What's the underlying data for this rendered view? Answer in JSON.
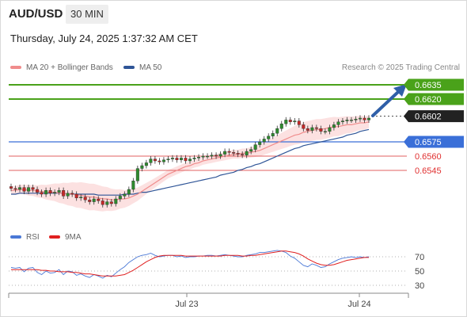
{
  "header": {
    "symbol": "AUD/USD",
    "timeframe": "30 MIN",
    "datetime": "Thursday, July 24, 2025 1:37:32 AM CET"
  },
  "legend": {
    "ma_bb_label": "MA 20 + Bollinger Bands",
    "ma50_label": "MA 50",
    "ma_bb_color": "#f08c8c",
    "ma50_color": "#2f5597",
    "research": "Research © 2025 Trading Central"
  },
  "rsi_legend": {
    "rsi_label": "RSI",
    "ma_label": "9MA",
    "rsi_color": "#4a78d6",
    "ma_color": "#e02020"
  },
  "colors": {
    "up": "#2e8b2e",
    "down": "#c62828",
    "resistance": "#4aa21a",
    "support_blue": "#3a6fd8",
    "support_red": "#e06060",
    "pivot": "#222222",
    "arrow": "#2f5fa8"
  },
  "chart_data": {
    "type": "candlestick",
    "x_ticks": [
      "Jul 23",
      "Jul 24"
    ],
    "levels": [
      {
        "value": 0.6635,
        "label": "0.6635",
        "kind": "resistance"
      },
      {
        "value": 0.662,
        "label": "0.6620",
        "kind": "resistance"
      },
      {
        "value": 0.6602,
        "label": "0.6602",
        "kind": "pivot"
      },
      {
        "value": 0.6575,
        "label": "0.6575",
        "kind": "support_blue"
      },
      {
        "value": 0.656,
        "label": "0.6560",
        "kind": "support_red"
      },
      {
        "value": 0.6545,
        "label": "0.6545",
        "kind": "support_red"
      }
    ],
    "close": [
      0.6526,
      0.6525,
      0.6527,
      0.6523,
      0.6527,
      0.6525,
      0.6522,
      0.652,
      0.6524,
      0.6521,
      0.6522,
      0.6524,
      0.6518,
      0.6521,
      0.652,
      0.6516,
      0.6517,
      0.6514,
      0.6512,
      0.6515,
      0.6513,
      0.6509,
      0.6512,
      0.651,
      0.6515,
      0.6518,
      0.652,
      0.6525,
      0.6534,
      0.6547,
      0.655,
      0.6553,
      0.6557,
      0.6555,
      0.6554,
      0.6556,
      0.6557,
      0.6558,
      0.6556,
      0.6558,
      0.6555,
      0.6557,
      0.6558,
      0.6559,
      0.656,
      0.656,
      0.6561,
      0.656,
      0.6562,
      0.6565,
      0.6564,
      0.6563,
      0.6562,
      0.6561,
      0.6565,
      0.6567,
      0.6572,
      0.6575,
      0.6578,
      0.6581,
      0.6584,
      0.6589,
      0.6594,
      0.6598,
      0.6596,
      0.6597,
      0.6593,
      0.6589,
      0.6587,
      0.659,
      0.6589,
      0.6586,
      0.6586,
      0.659,
      0.6593,
      0.6596,
      0.6597,
      0.6598,
      0.6598,
      0.6599,
      0.66,
      0.6598,
      0.66
    ],
    "ma20": [
      0.6524,
      0.6524,
      0.6525,
      0.6525,
      0.6524,
      0.6524,
      0.6523,
      0.6523,
      0.6522,
      0.6522,
      0.6522,
      0.6521,
      0.6521,
      0.652,
      0.652,
      0.6519,
      0.6519,
      0.6518,
      0.6517,
      0.6517,
      0.6516,
      0.6515,
      0.6515,
      0.6514,
      0.6514,
      0.6515,
      0.6515,
      0.6516,
      0.6518,
      0.652,
      0.6523,
      0.6526,
      0.6529,
      0.6532,
      0.6535,
      0.6538,
      0.6541,
      0.6543,
      0.6545,
      0.6547,
      0.6549,
      0.655,
      0.6552,
      0.6553,
      0.6555,
      0.6556,
      0.6557,
      0.6558,
      0.6559,
      0.656,
      0.6561,
      0.6562,
      0.6562,
      0.6563,
      0.6563,
      0.6564,
      0.6565,
      0.6566,
      0.6568,
      0.657,
      0.6572,
      0.6574,
      0.6576,
      0.6578,
      0.658,
      0.6582,
      0.6583,
      0.6585,
      0.6586,
      0.6587,
      0.6588,
      0.6588,
      0.6589,
      0.659,
      0.6591,
      0.6591,
      0.6592,
      0.6593,
      0.6593,
      0.6594,
      0.6595,
      0.6595,
      0.6596
    ],
    "ma50": [
      0.652,
      0.652,
      0.6521,
      0.6521,
      0.6521,
      0.6521,
      0.6521,
      0.6521,
      0.6521,
      0.6521,
      0.6521,
      0.6521,
      0.6521,
      0.652,
      0.652,
      0.652,
      0.652,
      0.652,
      0.652,
      0.652,
      0.6519,
      0.6519,
      0.6519,
      0.6519,
      0.6519,
      0.6519,
      0.652,
      0.652,
      0.652,
      0.6521,
      0.6522,
      0.6522,
      0.6523,
      0.6524,
      0.6525,
      0.6526,
      0.6527,
      0.6528,
      0.6529,
      0.653,
      0.6531,
      0.6532,
      0.6533,
      0.6534,
      0.6535,
      0.6536,
      0.6537,
      0.6538,
      0.654,
      0.6541,
      0.6542,
      0.6543,
      0.6545,
      0.6546,
      0.6548,
      0.6549,
      0.6551,
      0.6552,
      0.6554,
      0.6556,
      0.6558,
      0.656,
      0.6562,
      0.6564,
      0.6566,
      0.6568,
      0.6569,
      0.6571,
      0.6572,
      0.6573,
      0.6574,
      0.6575,
      0.6576,
      0.6577,
      0.6578,
      0.6579,
      0.658,
      0.6582,
      0.6583,
      0.6584,
      0.6586,
      0.6587,
      0.6588
    ],
    "rsi_axis": [
      70,
      50,
      30
    ],
    "rsi": [
      55,
      54,
      55,
      49,
      54,
      55,
      48,
      45,
      50,
      47,
      48,
      52,
      45,
      50,
      49,
      44,
      46,
      43,
      41,
      45,
      43,
      40,
      44,
      42,
      47,
      52,
      56,
      62,
      66,
      70,
      72,
      73,
      75,
      72,
      70,
      71,
      72,
      72,
      70,
      71,
      69,
      70,
      70,
      71,
      71,
      72,
      72,
      71,
      72,
      73,
      72,
      71,
      70,
      70,
      72,
      73,
      74,
      76,
      76,
      77,
      78,
      79,
      78,
      76,
      71,
      68,
      63,
      58,
      56,
      60,
      58,
      55,
      56,
      60,
      63,
      66,
      68,
      69,
      70,
      69,
      70,
      69,
      70
    ],
    "rsi_ma": [
      52,
      52,
      52,
      52,
      52,
      52,
      52,
      51,
      51,
      50,
      50,
      49,
      49,
      49,
      48,
      48,
      47,
      46,
      46,
      45,
      44,
      43,
      43,
      43,
      43,
      44,
      45,
      48,
      51,
      55,
      59,
      63,
      66,
      69,
      71,
      72,
      72,
      72,
      72,
      72,
      71,
      71,
      71,
      71,
      71,
      71,
      71,
      71,
      71,
      72,
      72,
      72,
      72,
      71,
      71,
      72,
      72,
      73,
      74,
      75,
      76,
      77,
      78,
      78,
      77,
      76,
      74,
      71,
      67,
      64,
      61,
      59,
      58,
      58,
      59,
      61,
      63,
      65,
      66,
      67,
      68,
      69,
      69
    ]
  }
}
